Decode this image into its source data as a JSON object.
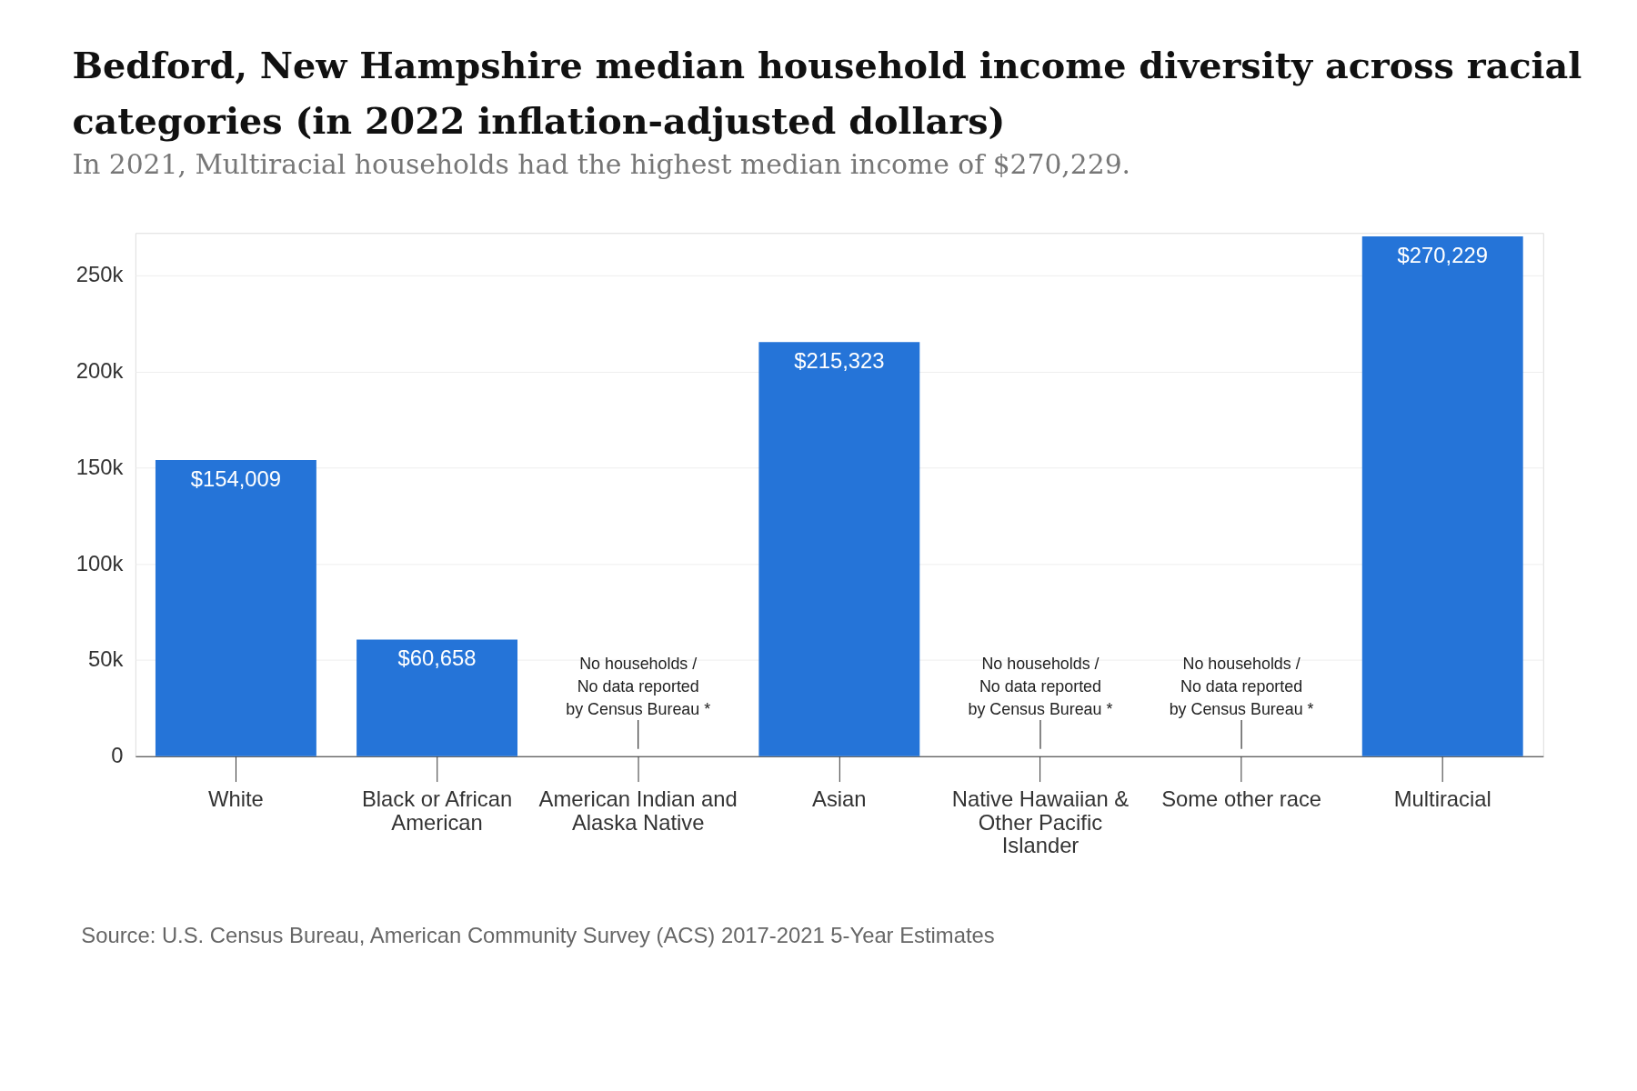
{
  "chart_data": {
    "type": "bar",
    "title": "Bedford, New Hampshire median household income diversity across racial categories (in 2022 inflation-adjusted dollars)",
    "subtitle": "In 2021, Multiracial households had the highest median income of $270,229.",
    "categories": [
      "White",
      "Black or African American",
      "American Indian and Alaska Native",
      "Asian",
      "Native Hawaiian & Other Pacific Islander",
      "Some other race",
      "Multiracial"
    ],
    "values": [
      154009,
      60658,
      null,
      215323,
      null,
      null,
      270229
    ],
    "color": "#2574d8",
    "value_labels": [
      "$154,009",
      "$60,658",
      null,
      "$215,323",
      null,
      null,
      "$270,229"
    ],
    "ylim": [
      0,
      272000
    ],
    "yticks": [
      0,
      {
        "value": 50000,
        "label": "50k"
      },
      {
        "value": 100000,
        "label": "100k"
      },
      {
        "value": 150000,
        "label": "150k"
      },
      {
        "value": 200000,
        "label": "200k"
      },
      {
        "value": 250000,
        "label": "250k"
      }
    ],
    "grid": "y",
    "annotations": [
      "No households / No data reported by Census Bureau *",
      "No households / No data reported by Census Bureau *",
      "No households / No data reported by Census Bureau *",
      "Source: U.S. Census Bureau, American Community Survey (ACS) 2017-2021 5-Year Estimates"
    ]
  }
}
